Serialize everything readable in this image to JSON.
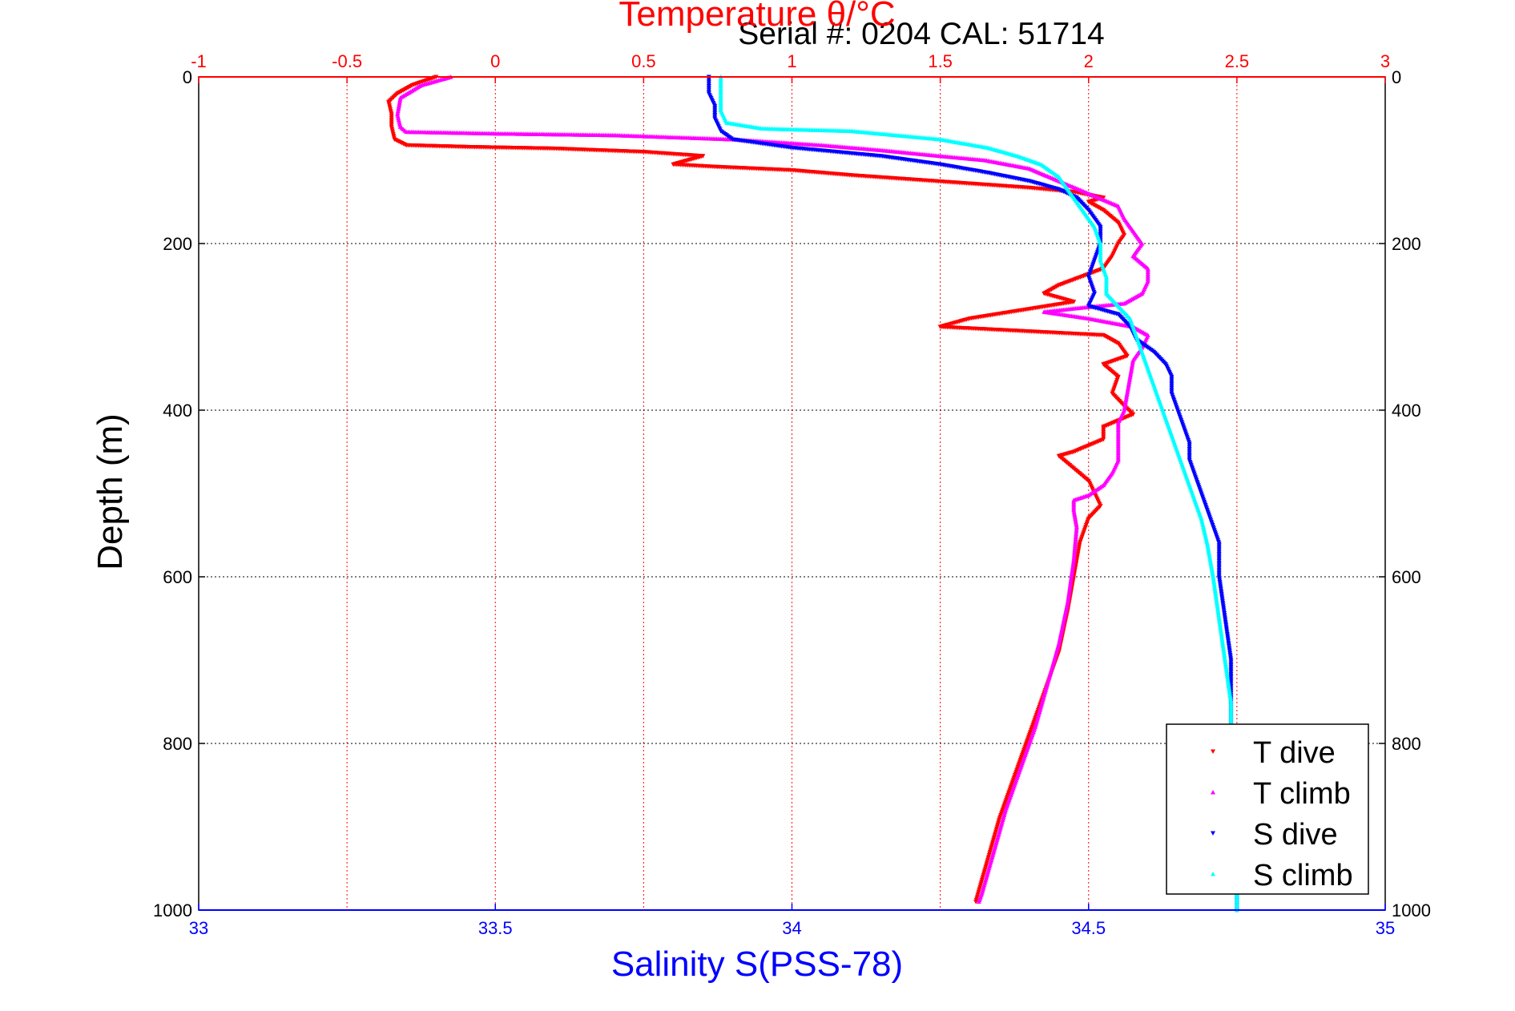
{
  "header": {
    "serial_text": "Serial #: 0204   CAL: 51714"
  },
  "chart_data": {
    "type": "scatter",
    "title": "Temperature θ/°C",
    "top_axis": {
      "label": "Temperature θ/°C",
      "range": [
        -1,
        3
      ],
      "ticks": [
        "-1",
        "-0.5",
        "0",
        "0.5",
        "1",
        "1.5",
        "2",
        "2.5",
        "3"
      ],
      "color": "#ff0000"
    },
    "bottom_axis": {
      "label": "Salinity S(PSS-78)",
      "range": [
        33,
        35
      ],
      "ticks": [
        "33",
        "33.5",
        "34",
        "34.5",
        "35"
      ],
      "color": "#0000ff"
    },
    "y_axis": {
      "label": "Depth (m)",
      "range": [
        0,
        1000
      ],
      "reversed": true,
      "ticks": [
        "0",
        "200",
        "400",
        "600",
        "800",
        "1000"
      ]
    },
    "grid": true,
    "legend_position": "bottom-right",
    "series": [
      {
        "name": "T dive",
        "axis": "temperature",
        "color": "#ff0000",
        "marker": "triangle-down",
        "points": [
          [
            -0.2,
            0
          ],
          [
            -0.28,
            10
          ],
          [
            -0.33,
            20
          ],
          [
            -0.36,
            30
          ],
          [
            -0.35,
            45
          ],
          [
            -0.35,
            60
          ],
          [
            -0.34,
            75
          ],
          [
            -0.3,
            82
          ],
          [
            -0.1,
            84
          ],
          [
            0.2,
            86
          ],
          [
            0.5,
            90
          ],
          [
            0.7,
            95
          ],
          [
            0.65,
            100
          ],
          [
            0.6,
            105
          ],
          [
            0.75,
            108
          ],
          [
            1.0,
            112
          ],
          [
            1.2,
            118
          ],
          [
            1.4,
            123
          ],
          [
            1.6,
            128
          ],
          [
            1.8,
            133
          ],
          [
            1.95,
            138
          ],
          [
            2.05,
            145
          ],
          [
            2.0,
            150
          ],
          [
            2.05,
            160
          ],
          [
            2.1,
            175
          ],
          [
            2.12,
            190
          ],
          [
            2.1,
            200
          ],
          [
            2.08,
            215
          ],
          [
            2.05,
            230
          ],
          [
            1.9,
            250
          ],
          [
            1.85,
            260
          ],
          [
            1.95,
            270
          ],
          [
            1.6,
            290
          ],
          [
            1.5,
            300
          ],
          [
            2.05,
            310
          ],
          [
            2.1,
            320
          ],
          [
            2.13,
            335
          ],
          [
            2.05,
            345
          ],
          [
            2.1,
            360
          ],
          [
            2.08,
            380
          ],
          [
            2.12,
            395
          ],
          [
            2.15,
            405
          ],
          [
            2.05,
            420
          ],
          [
            2.05,
            435
          ],
          [
            1.95,
            450
          ],
          [
            1.9,
            455
          ],
          [
            1.95,
            470
          ],
          [
            2.0,
            485
          ],
          [
            2.02,
            500
          ],
          [
            2.04,
            515
          ],
          [
            2.0,
            530
          ],
          [
            1.97,
            560
          ],
          [
            1.95,
            600
          ],
          [
            1.93,
            640
          ],
          [
            1.9,
            690
          ],
          [
            1.85,
            740
          ],
          [
            1.8,
            790
          ],
          [
            1.75,
            840
          ],
          [
            1.7,
            890
          ],
          [
            1.66,
            940
          ],
          [
            1.62,
            990
          ]
        ]
      },
      {
        "name": "T climb",
        "axis": "temperature",
        "color": "#ff00ff",
        "marker": "triangle-up",
        "points": [
          [
            -0.15,
            0
          ],
          [
            -0.25,
            10
          ],
          [
            -0.32,
            25
          ],
          [
            -0.33,
            45
          ],
          [
            -0.32,
            60
          ],
          [
            -0.3,
            66
          ],
          [
            0.0,
            68
          ],
          [
            0.4,
            70
          ],
          [
            0.8,
            75
          ],
          [
            1.1,
            82
          ],
          [
            1.3,
            88
          ],
          [
            1.5,
            95
          ],
          [
            1.65,
            100
          ],
          [
            1.8,
            110
          ],
          [
            1.9,
            125
          ],
          [
            2.0,
            140
          ],
          [
            2.1,
            155
          ],
          [
            2.12,
            170
          ],
          [
            2.15,
            185
          ],
          [
            2.18,
            200
          ],
          [
            2.15,
            215
          ],
          [
            2.2,
            230
          ],
          [
            2.2,
            245
          ],
          [
            2.18,
            260
          ],
          [
            2.12,
            272
          ],
          [
            1.95,
            278
          ],
          [
            1.85,
            282
          ],
          [
            2.0,
            290
          ],
          [
            2.15,
            300
          ],
          [
            2.2,
            310
          ],
          [
            2.18,
            325
          ],
          [
            2.15,
            340
          ],
          [
            2.14,
            360
          ],
          [
            2.13,
            380
          ],
          [
            2.12,
            400
          ],
          [
            2.1,
            415
          ],
          [
            2.1,
            430
          ],
          [
            2.1,
            445
          ],
          [
            2.1,
            460
          ],
          [
            2.08,
            475
          ],
          [
            2.05,
            490
          ],
          [
            2.0,
            502
          ],
          [
            1.95,
            508
          ],
          [
            1.95,
            520
          ],
          [
            1.96,
            540
          ],
          [
            1.95,
            580
          ],
          [
            1.93,
            630
          ],
          [
            1.9,
            680
          ],
          [
            1.86,
            730
          ],
          [
            1.82,
            780
          ],
          [
            1.77,
            830
          ],
          [
            1.72,
            880
          ],
          [
            1.68,
            930
          ],
          [
            1.64,
            980
          ],
          [
            1.63,
            990
          ]
        ]
      },
      {
        "name": "S dive",
        "axis": "salinity",
        "color": "#0000ff",
        "marker": "triangle-down",
        "points": [
          [
            33.86,
            0
          ],
          [
            33.86,
            20
          ],
          [
            33.87,
            35
          ],
          [
            33.87,
            50
          ],
          [
            33.88,
            65
          ],
          [
            33.9,
            75
          ],
          [
            34.0,
            85
          ],
          [
            34.15,
            95
          ],
          [
            34.25,
            105
          ],
          [
            34.33,
            115
          ],
          [
            34.4,
            125
          ],
          [
            34.45,
            135
          ],
          [
            34.48,
            145
          ],
          [
            34.5,
            160
          ],
          [
            34.52,
            180
          ],
          [
            34.52,
            200
          ],
          [
            34.51,
            220
          ],
          [
            34.5,
            240
          ],
          [
            34.51,
            260
          ],
          [
            34.5,
            275
          ],
          [
            34.55,
            285
          ],
          [
            34.57,
            300
          ],
          [
            34.58,
            315
          ],
          [
            34.61,
            330
          ],
          [
            34.63,
            345
          ],
          [
            34.64,
            360
          ],
          [
            34.64,
            380
          ],
          [
            34.65,
            400
          ],
          [
            34.66,
            420
          ],
          [
            34.67,
            440
          ],
          [
            34.67,
            460
          ],
          [
            34.68,
            480
          ],
          [
            34.69,
            500
          ],
          [
            34.7,
            520
          ],
          [
            34.71,
            540
          ],
          [
            34.72,
            560
          ],
          [
            34.72,
            600
          ],
          [
            34.73,
            650
          ],
          [
            34.74,
            700
          ],
          [
            34.74,
            750
          ],
          [
            34.74,
            800
          ],
          [
            34.75,
            850
          ],
          [
            34.75,
            900
          ],
          [
            34.75,
            950
          ],
          [
            34.75,
            1000
          ]
        ]
      },
      {
        "name": "S climb",
        "axis": "salinity",
        "color": "#00ffff",
        "marker": "triangle-up",
        "points": [
          [
            33.88,
            0
          ],
          [
            33.88,
            20
          ],
          [
            33.88,
            40
          ],
          [
            33.89,
            55
          ],
          [
            33.95,
            62
          ],
          [
            34.1,
            65
          ],
          [
            34.25,
            75
          ],
          [
            34.33,
            85
          ],
          [
            34.38,
            95
          ],
          [
            34.42,
            105
          ],
          [
            34.45,
            120
          ],
          [
            34.47,
            140
          ],
          [
            34.49,
            160
          ],
          [
            34.51,
            180
          ],
          [
            34.52,
            200
          ],
          [
            34.52,
            220
          ],
          [
            34.53,
            240
          ],
          [
            34.53,
            260
          ],
          [
            34.55,
            275
          ],
          [
            34.57,
            290
          ],
          [
            34.58,
            310
          ],
          [
            34.59,
            330
          ],
          [
            34.6,
            350
          ],
          [
            34.61,
            370
          ],
          [
            34.62,
            390
          ],
          [
            34.63,
            410
          ],
          [
            34.64,
            430
          ],
          [
            34.65,
            450
          ],
          [
            34.66,
            470
          ],
          [
            34.67,
            490
          ],
          [
            34.68,
            510
          ],
          [
            34.69,
            530
          ],
          [
            34.7,
            560
          ],
          [
            34.71,
            600
          ],
          [
            34.72,
            650
          ],
          [
            34.73,
            700
          ],
          [
            34.74,
            750
          ],
          [
            34.74,
            790
          ],
          [
            34.75,
            850
          ],
          [
            34.75,
            900
          ],
          [
            34.75,
            950
          ],
          [
            34.75,
            1000
          ]
        ]
      }
    ]
  }
}
